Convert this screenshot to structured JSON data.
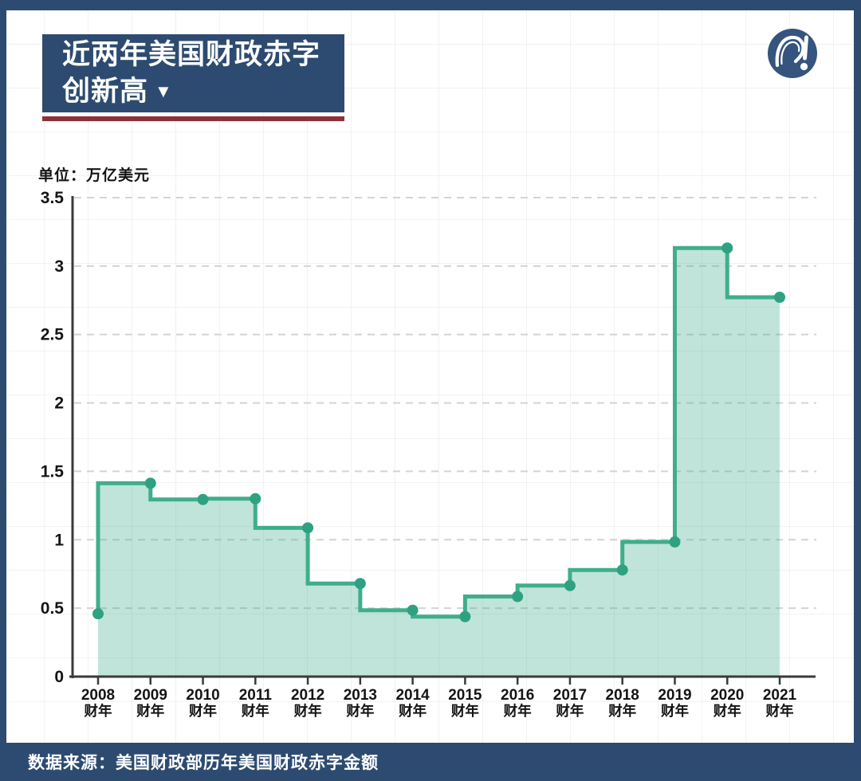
{
  "page": {
    "title_line1": "近两年美国财政赤字",
    "title_line2": "创新高",
    "title_arrow": "▼",
    "unit_label": "单位：万亿美元",
    "source_text": "数据来源：美国财政部历年美国财政赤字金额",
    "logo_icon": "question-exclamation-mark-logo"
  },
  "colors": {
    "navy": "#2d4b70",
    "logo_navy": "#35547e",
    "accent_red": "#8f2f38",
    "line_teal": "#3fae8b",
    "dot_teal": "#2ea181",
    "fill_teal": "rgba(63,174,139,0.33)",
    "grid_dash": "#d4d4d4",
    "axis": "#3a3a3a",
    "text": "#141414",
    "white": "#ffffff"
  },
  "chart_data": {
    "type": "area",
    "subtype": "step-pre",
    "title": "近两年美国财政赤字创新高",
    "ylabel": "单位：万亿美元",
    "categories": [
      "2008",
      "2009",
      "2010",
      "2011",
      "2012",
      "2013",
      "2014",
      "2015",
      "2016",
      "2017",
      "2018",
      "2019",
      "2020",
      "2021"
    ],
    "category_sublabel": "财年",
    "values": [
      0.459,
      1.413,
      1.294,
      1.3,
      1.087,
      0.68,
      0.485,
      0.438,
      0.585,
      0.665,
      0.779,
      0.984,
      3.132,
      2.772
    ],
    "ylim": [
      0,
      3.5
    ],
    "yticks": [
      0,
      0.5,
      1,
      1.5,
      2,
      2.5,
      3,
      3.5
    ],
    "ytick_labels": [
      "0",
      "0.5",
      "1",
      "1.5",
      "2",
      "2.5",
      "3",
      "3.5"
    ],
    "grid": "horizontal-dashed",
    "legend": "none",
    "markers": "circle"
  }
}
